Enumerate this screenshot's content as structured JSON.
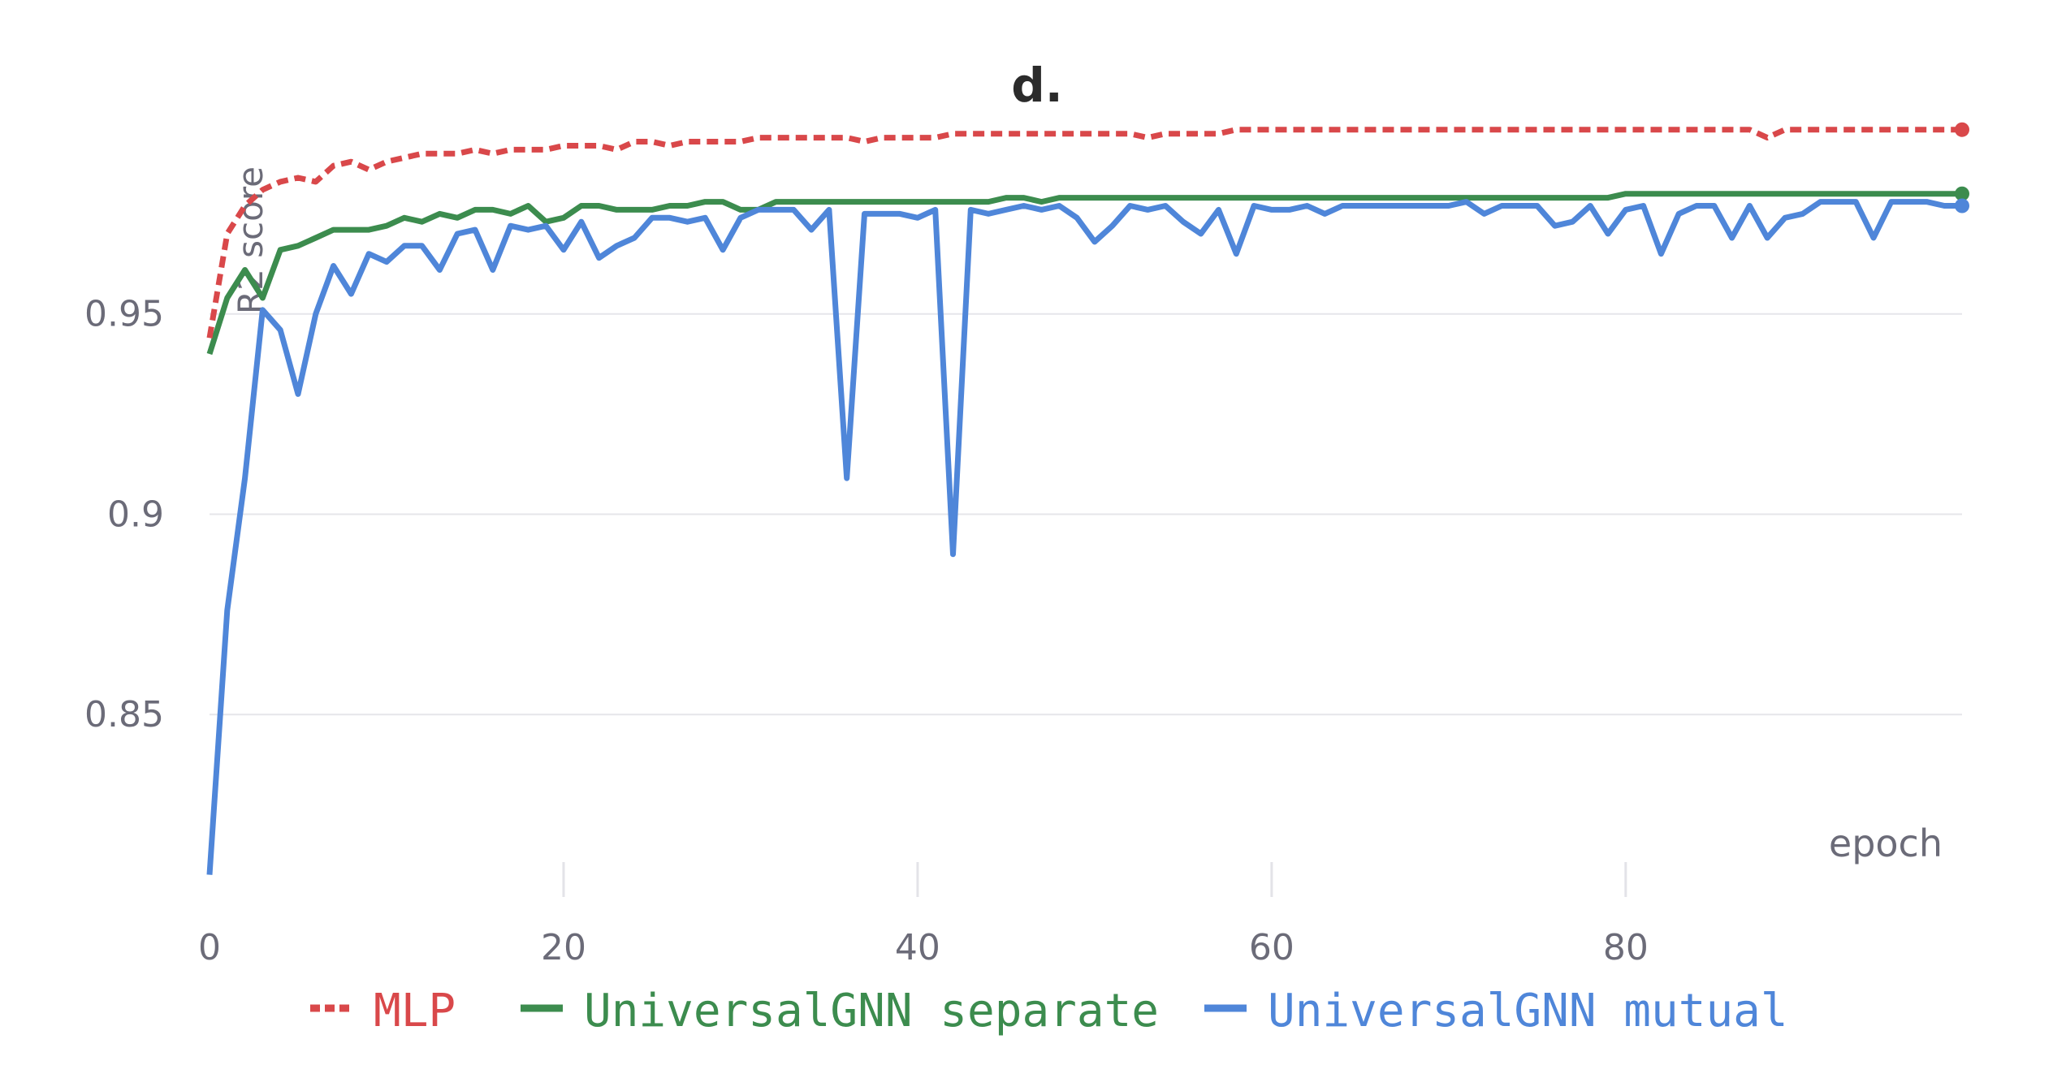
{
  "chart_data": {
    "type": "line",
    "title": "d.",
    "xlabel": "epoch",
    "ylabel": "R2 score",
    "xlim": [
      0,
      99
    ],
    "ylim": [
      0.8085,
      1.0
    ],
    "x_ticks": [
      0,
      20,
      40,
      60,
      80
    ],
    "x_tick_labels": [
      "0",
      "20",
      "40",
      "60",
      "80"
    ],
    "y_ticks": [
      0.85,
      0.9,
      0.95
    ],
    "y_tick_labels": [
      "0.85",
      "0.9",
      "0.95"
    ],
    "grid": true,
    "legend_position": "bottom",
    "series": [
      {
        "name": "MLP",
        "color": "#d9484a",
        "dash": "dashed",
        "values": [
          0.944,
          0.97,
          0.977,
          0.981,
          0.983,
          0.984,
          0.983,
          0.987,
          0.988,
          0.986,
          0.988,
          0.989,
          0.99,
          0.99,
          0.99,
          0.991,
          0.99,
          0.991,
          0.991,
          0.991,
          0.992,
          0.992,
          0.992,
          0.991,
          0.993,
          0.993,
          0.992,
          0.993,
          0.993,
          0.993,
          0.993,
          0.994,
          0.994,
          0.994,
          0.994,
          0.994,
          0.994,
          0.993,
          0.994,
          0.994,
          0.994,
          0.994,
          0.995,
          0.995,
          0.995,
          0.995,
          0.995,
          0.995,
          0.995,
          0.995,
          0.995,
          0.995,
          0.995,
          0.994,
          0.995,
          0.995,
          0.995,
          0.995,
          0.996,
          0.996,
          0.996,
          0.996,
          0.996,
          0.996,
          0.996,
          0.996,
          0.996,
          0.996,
          0.996,
          0.996,
          0.996,
          0.996,
          0.996,
          0.996,
          0.996,
          0.996,
          0.996,
          0.996,
          0.996,
          0.996,
          0.996,
          0.996,
          0.996,
          0.996,
          0.996,
          0.996,
          0.996,
          0.996,
          0.994,
          0.996,
          0.996,
          0.996,
          0.996,
          0.996,
          0.996,
          0.996,
          0.996,
          0.996,
          0.996,
          0.996
        ]
      },
      {
        "name": "UniversalGNN separate",
        "color": "#3c8c4e",
        "dash": "solid",
        "values": [
          0.94,
          0.954,
          0.961,
          0.954,
          0.966,
          0.967,
          0.969,
          0.971,
          0.971,
          0.971,
          0.972,
          0.974,
          0.973,
          0.975,
          0.974,
          0.976,
          0.976,
          0.975,
          0.977,
          0.973,
          0.974,
          0.977,
          0.977,
          0.976,
          0.976,
          0.976,
          0.977,
          0.977,
          0.978,
          0.978,
          0.976,
          0.976,
          0.978,
          0.978,
          0.978,
          0.978,
          0.978,
          0.978,
          0.978,
          0.978,
          0.978,
          0.978,
          0.978,
          0.978,
          0.978,
          0.979,
          0.979,
          0.978,
          0.979,
          0.979,
          0.979,
          0.979,
          0.979,
          0.979,
          0.979,
          0.979,
          0.979,
          0.979,
          0.979,
          0.979,
          0.979,
          0.979,
          0.979,
          0.979,
          0.979,
          0.979,
          0.979,
          0.979,
          0.979,
          0.979,
          0.979,
          0.979,
          0.979,
          0.979,
          0.979,
          0.979,
          0.979,
          0.979,
          0.979,
          0.979,
          0.98,
          0.98,
          0.98,
          0.98,
          0.98,
          0.98,
          0.98,
          0.98,
          0.98,
          0.98,
          0.98,
          0.98,
          0.98,
          0.98,
          0.98,
          0.98,
          0.98,
          0.98,
          0.98,
          0.98
        ]
      },
      {
        "name": "UniversalGNN mutual",
        "color": "#4f86d9",
        "dash": "solid",
        "values": [
          0.81,
          0.876,
          0.909,
          0.951,
          0.946,
          0.93,
          0.95,
          0.962,
          0.955,
          0.965,
          0.963,
          0.967,
          0.967,
          0.961,
          0.97,
          0.971,
          0.961,
          0.972,
          0.971,
          0.972,
          0.966,
          0.973,
          0.964,
          0.967,
          0.969,
          0.974,
          0.974,
          0.973,
          0.974,
          0.966,
          0.974,
          0.976,
          0.976,
          0.976,
          0.971,
          0.976,
          0.909,
          0.975,
          0.975,
          0.975,
          0.974,
          0.976,
          0.89,
          0.976,
          0.975,
          0.976,
          0.977,
          0.976,
          0.977,
          0.974,
          0.968,
          0.972,
          0.977,
          0.976,
          0.977,
          0.973,
          0.97,
          0.976,
          0.965,
          0.977,
          0.976,
          0.976,
          0.977,
          0.975,
          0.977,
          0.977,
          0.977,
          0.977,
          0.977,
          0.977,
          0.977,
          0.978,
          0.975,
          0.977,
          0.977,
          0.977,
          0.972,
          0.973,
          0.977,
          0.97,
          0.976,
          0.977,
          0.965,
          0.975,
          0.977,
          0.977,
          0.969,
          0.977,
          0.969,
          0.974,
          0.975,
          0.978,
          0.978,
          0.978,
          0.969,
          0.978,
          0.978,
          0.978,
          0.977,
          0.977
        ]
      }
    ]
  }
}
